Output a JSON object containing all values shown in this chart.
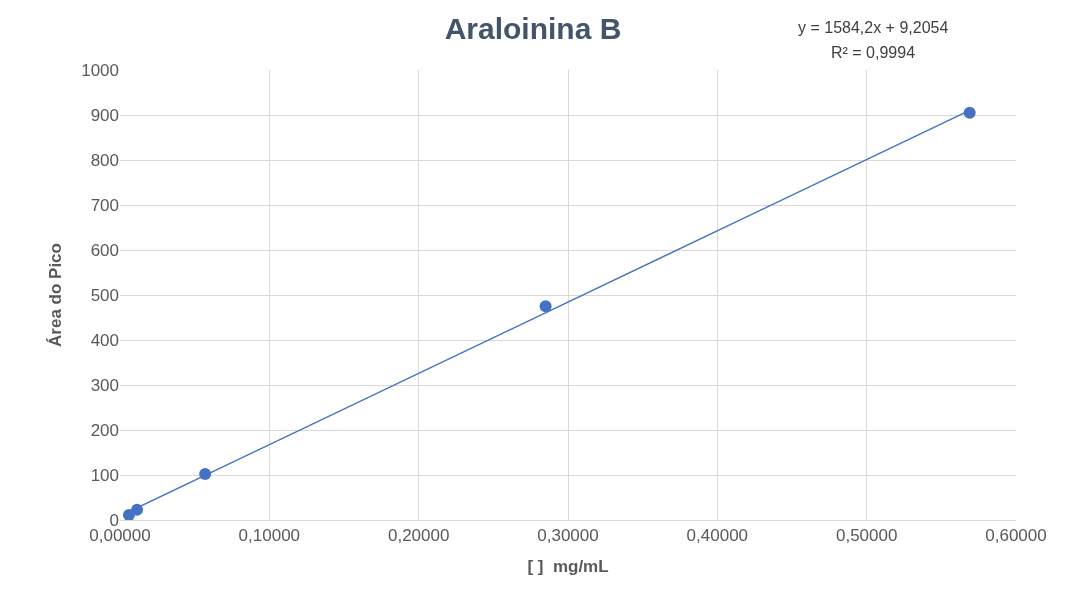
{
  "chart_data": {
    "type": "scatter",
    "title": "Araloinina B",
    "xlabel": "[ ]  mg/mL",
    "ylabel": "Área do Pico",
    "series": [
      {
        "color": "#4472c4",
        "marker": "circle",
        "x": [
          0.006,
          0.0114,
          0.057,
          0.285,
          0.569
        ],
        "values": [
          11,
          23,
          102,
          475,
          905
        ]
      },
      {
        "type": "line",
        "color": "#4472c4",
        "marker": "none",
        "x": [
          0.0057,
          0.57
        ],
        "values": [
          18,
          912
        ]
      }
    ],
    "xlim": [
      0,
      0.6
    ],
    "xticks": [
      {
        "value": 0,
        "label": "0,00000"
      },
      {
        "value": 0.1,
        "label": "0,10000"
      },
      {
        "value": 0.2,
        "label": "0,20000"
      },
      {
        "value": 0.3,
        "label": "0,30000"
      },
      {
        "value": 0.4,
        "label": "0,40000"
      },
      {
        "value": 0.5,
        "label": "0,50000"
      },
      {
        "value": 0.6,
        "label": "0,60000"
      }
    ],
    "ylim": [
      0,
      1000
    ],
    "yticks": [
      0,
      100,
      200,
      300,
      400,
      500,
      600,
      700,
      800,
      900,
      1000
    ],
    "annotations": [
      "y = 1584,2x + 9,2054",
      "R² = 0,9994"
    ],
    "grid": true,
    "legend": false
  }
}
